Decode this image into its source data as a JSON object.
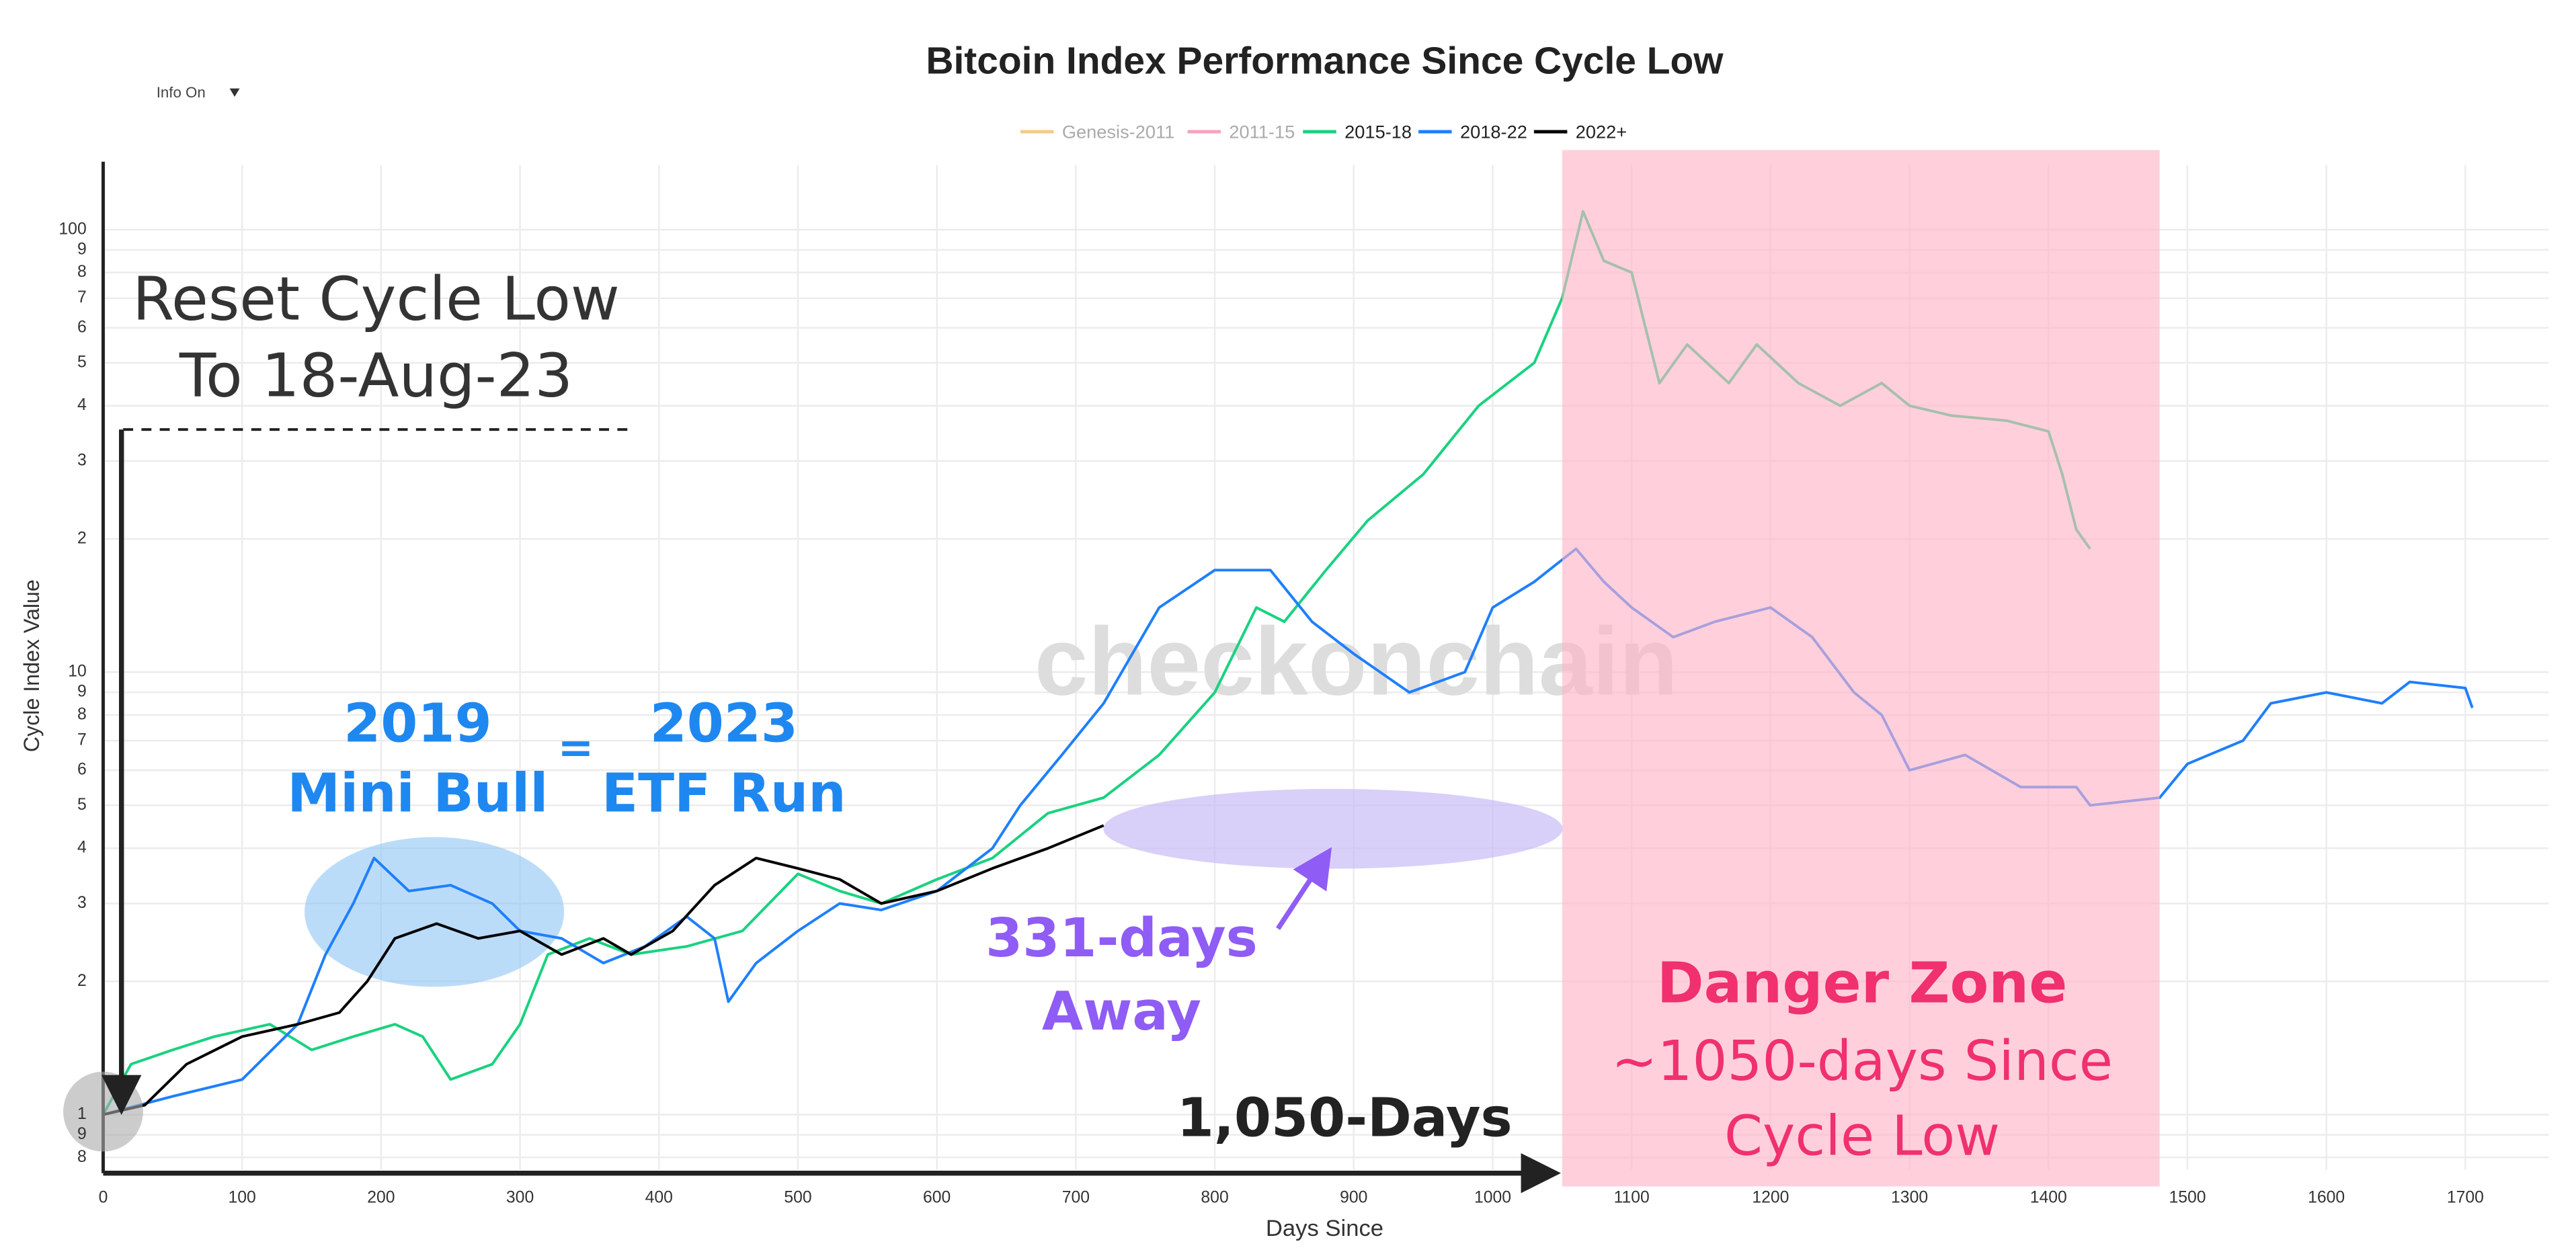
{
  "chart_data": {
    "type": "line",
    "title": "Bitcoin Index Performance Since Cycle Low",
    "dropdown": "Info On",
    "xlabel": "Days Since",
    "ylabel": "Cycle Index Value",
    "watermark": "checkonchain",
    "log_y": true,
    "grid": true,
    "xlim": [
      0,
      1760
    ],
    "xticks": [
      0,
      100,
      200,
      300,
      400,
      500,
      600,
      700,
      800,
      900,
      1000,
      1100,
      1200,
      1300,
      1400,
      1500,
      1600,
      1700
    ],
    "ylim": [
      0.75,
      140
    ],
    "yticks": [
      {
        "value": 0.8,
        "label": "8"
      },
      {
        "value": 0.9,
        "label": "9"
      },
      1,
      2,
      3,
      4,
      5,
      6,
      7,
      8,
      9,
      10,
      {
        "value": 20,
        "label": "2"
      },
      {
        "value": 30,
        "label": "3"
      },
      {
        "value": 40,
        "label": "4"
      },
      {
        "value": 50,
        "label": "5"
      },
      {
        "value": 60,
        "label": "6"
      },
      {
        "value": 70,
        "label": "7"
      },
      {
        "value": 80,
        "label": "8"
      },
      {
        "value": 90,
        "label": "9"
      },
      100
    ],
    "shaded_region": [
      1050,
      1480
    ],
    "series": [
      {
        "name": "Genesis-2011",
        "color": "#f7c98c",
        "x": [],
        "values": []
      },
      {
        "name": "2011-15",
        "color": "#f5a3c0",
        "x": [],
        "values": []
      },
      {
        "name": "2015-18",
        "color": "#19d27f",
        "x": [
          0,
          20,
          50,
          80,
          120,
          150,
          180,
          210,
          230,
          250,
          280,
          300,
          320,
          350,
          380,
          420,
          460,
          500,
          530,
          560,
          600,
          640,
          680,
          720,
          760,
          800,
          830,
          850,
          880,
          910,
          950,
          990,
          1030,
          1050,
          1065,
          1080,
          1100,
          1120,
          1140,
          1170,
          1190,
          1220,
          1250,
          1280,
          1300,
          1330,
          1370,
          1400,
          1410,
          1420,
          1430
        ],
        "values": [
          1,
          1.3,
          1.4,
          1.5,
          1.6,
          1.4,
          1.5,
          1.6,
          1.5,
          1.2,
          1.3,
          1.6,
          2.3,
          2.5,
          2.3,
          2.4,
          2.6,
          3.5,
          3.2,
          3.0,
          3.4,
          3.8,
          4.8,
          5.2,
          6.5,
          9,
          14,
          13,
          17,
          22,
          28,
          40,
          50,
          70,
          110,
          85,
          80,
          45,
          55,
          45,
          55,
          45,
          40,
          45,
          40,
          38,
          37,
          35,
          28,
          21,
          19
        ]
      },
      {
        "name": "2018-22",
        "color": "#1e7fff",
        "x": [
          0,
          50,
          100,
          140,
          160,
          180,
          195,
          220,
          250,
          280,
          300,
          330,
          360,
          390,
          420,
          440,
          450,
          470,
          500,
          530,
          560,
          600,
          640,
          660,
          690,
          720,
          760,
          800,
          840,
          870,
          900,
          940,
          980,
          1000,
          1030,
          1060,
          1080,
          1100,
          1130,
          1160,
          1200,
          1230,
          1260,
          1280,
          1300,
          1340,
          1380,
          1420,
          1430,
          1480,
          1500,
          1540,
          1560,
          1600,
          1640,
          1660,
          1700,
          1705
        ],
        "values": [
          1,
          1.1,
          1.2,
          1.6,
          2.3,
          3.0,
          3.8,
          3.2,
          3.3,
          3.0,
          2.6,
          2.5,
          2.2,
          2.4,
          2.8,
          2.5,
          1.8,
          2.2,
          2.6,
          3.0,
          2.9,
          3.2,
          4.0,
          5.0,
          6.5,
          8.5,
          14,
          17,
          17,
          13,
          11,
          9,
          10,
          14,
          16,
          19,
          16,
          14,
          12,
          13,
          14,
          12,
          9,
          8,
          6,
          6.5,
          5.5,
          5.5,
          5,
          5.2,
          6.2,
          7,
          8.5,
          9,
          8.5,
          9.5,
          9.2,
          8.3
        ]
      },
      {
        "name": "2022+",
        "color": "#000000",
        "x": [
          0,
          30,
          60,
          100,
          140,
          170,
          190,
          210,
          240,
          270,
          300,
          330,
          360,
          380,
          410,
          440,
          470,
          500,
          530,
          560,
          600,
          640,
          680,
          720
        ],
        "values": [
          1,
          1.05,
          1.3,
          1.5,
          1.6,
          1.7,
          2.0,
          2.5,
          2.7,
          2.5,
          2.6,
          2.3,
          2.5,
          2.3,
          2.6,
          3.3,
          3.8,
          3.6,
          3.4,
          3.0,
          3.2,
          3.6,
          4.0,
          4.5
        ]
      }
    ],
    "annotations": {
      "reset_1": "Reset Cycle Low",
      "reset_2": "To 18-Aug-23",
      "year_2019": "2019",
      "mini_bull": "Mini Bull",
      "equals": "=",
      "year_2023": "2023",
      "etf_run": "ETF Run",
      "days_331": "331-days",
      "away": "Away",
      "days_1050": "1,050-Days",
      "danger": "Danger Zone",
      "danger_2": "~1050-days Since",
      "danger_3": "Cycle Low"
    }
  }
}
